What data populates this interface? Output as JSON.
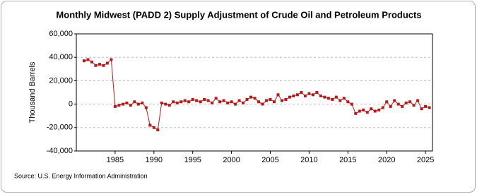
{
  "chart_data": {
    "type": "line",
    "title": "Monthly Midwest (PADD 2) Supply Adjustment of Crude Oil and Petroleum Products",
    "y_label": "Thousand Barrels",
    "source": "Source: U.S. Energy Information Administration",
    "color": "#b01c1c",
    "grid": true,
    "x": [
      1981,
      1981.5,
      1982,
      1982.5,
      1983,
      1983.5,
      1984,
      1984.5,
      1985,
      1985.5,
      1986,
      1986.5,
      1987,
      1987.5,
      1988,
      1988.5,
      1989,
      1989.5,
      1990,
      1990.5,
      1991,
      1991.5,
      1992,
      1992.5,
      1993,
      1993.5,
      1994,
      1994.5,
      1995,
      1995.5,
      1996,
      1996.5,
      1997,
      1997.5,
      1998,
      1998.5,
      1999,
      1999.5,
      2000,
      2000.5,
      2001,
      2001.5,
      2002,
      2002.5,
      2003,
      2003.5,
      2004,
      2004.5,
      2005,
      2005.5,
      2006,
      2006.5,
      2007,
      2007.5,
      2008,
      2008.5,
      2009,
      2009.5,
      2010,
      2010.5,
      2011,
      2011.5,
      2012,
      2012.5,
      2013,
      2013.5,
      2014,
      2014.5,
      2015,
      2015.5,
      2016,
      2016.5,
      2017,
      2017.5,
      2018,
      2018.5,
      2019,
      2019.5,
      2020,
      2020.5,
      2021,
      2021.5,
      2022,
      2022.5,
      2023,
      2023.5,
      2024,
      2024.5,
      2025,
      2025.5
    ],
    "values": [
      37000,
      38000,
      36000,
      33000,
      34000,
      33000,
      35000,
      38000,
      -2000,
      -1000,
      0,
      1000,
      -1000,
      2000,
      0,
      1000,
      -3000,
      -18000,
      -20000,
      -22000,
      1000,
      0,
      -1000,
      2000,
      1000,
      2000,
      3000,
      2000,
      4000,
      3000,
      2000,
      4000,
      3000,
      1000,
      5000,
      2000,
      3000,
      1000,
      2000,
      0,
      3000,
      1000,
      4000,
      6000,
      5000,
      2000,
      0,
      3000,
      4000,
      2000,
      8000,
      3000,
      4000,
      6000,
      7000,
      8000,
      10000,
      7000,
      9000,
      8000,
      10000,
      7000,
      6000,
      5000,
      4000,
      6000,
      3000,
      5000,
      2000,
      0,
      -8000,
      -6000,
      -5000,
      -7000,
      -4000,
      -6000,
      -5000,
      -3000,
      2000,
      -2000,
      3000,
      0,
      -2000,
      1000,
      2000,
      -1000,
      3000,
      -4000,
      -2000,
      -3000
    ],
    "xlim": [
      1980,
      2025.9
    ],
    "xticks": [
      1985,
      1990,
      1995,
      2000,
      2005,
      2010,
      2015,
      2020,
      2025
    ],
    "ylim": [
      -40000,
      60000
    ],
    "yticks": [
      {
        "value": -40000,
        "label": "-40,000"
      },
      {
        "value": -20000,
        "label": "-20,000"
      },
      0,
      {
        "value": 20000,
        "label": "20,000"
      },
      {
        "value": 40000,
        "label": "40,000"
      },
      {
        "value": 60000,
        "label": "60,000"
      }
    ]
  }
}
